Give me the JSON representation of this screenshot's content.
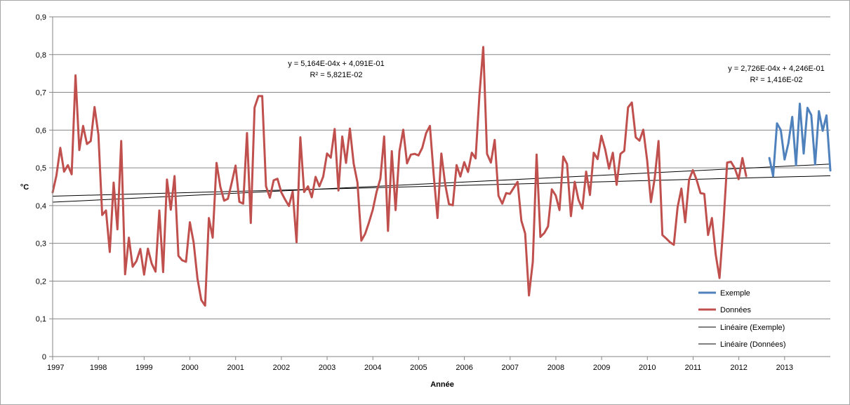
{
  "chart_data": {
    "type": "line",
    "xlabel": "Année",
    "ylabel": "°C",
    "ylim": [
      0,
      0.9
    ],
    "yticks": [
      "0",
      "0,1",
      "0,2",
      "0,3",
      "0,4",
      "0,5",
      "0,6",
      "0,7",
      "0,8",
      "0,9"
    ],
    "xlim": [
      1997,
      2014
    ],
    "xticks": [
      "1997",
      "1998",
      "1999",
      "2000",
      "2001",
      "2002",
      "2003",
      "2004",
      "2005",
      "2006",
      "2007",
      "2008",
      "2009",
      "2010",
      "2011",
      "2012",
      "2013"
    ],
    "grid": "horizontal",
    "legend_position": "bottom-right",
    "series": [
      {
        "name": "Données",
        "color": "#c0504d",
        "start_year": 1997.0,
        "step_years": 0.0833,
        "values": [
          0.435,
          0.48,
          0.553,
          0.49,
          0.507,
          0.483,
          0.745,
          0.547,
          0.611,
          0.563,
          0.571,
          0.661,
          0.588,
          0.375,
          0.387,
          0.277,
          0.461,
          0.337,
          0.571,
          0.218,
          0.315,
          0.238,
          0.253,
          0.285,
          0.217,
          0.286,
          0.246,
          0.225,
          0.387,
          0.224,
          0.469,
          0.389,
          0.478,
          0.267,
          0.255,
          0.251,
          0.356,
          0.302,
          0.207,
          0.15,
          0.135,
          0.367,
          0.315,
          0.513,
          0.45,
          0.413,
          0.418,
          0.461,
          0.506,
          0.41,
          0.405,
          0.592,
          0.354,
          0.66,
          0.69,
          0.69,
          0.451,
          0.421,
          0.467,
          0.471,
          0.435,
          0.416,
          0.399,
          0.437,
          0.303,
          0.581,
          0.436,
          0.451,
          0.422,
          0.476,
          0.451,
          0.477,
          0.538,
          0.527,
          0.603,
          0.44,
          0.583,
          0.513,
          0.604,
          0.511,
          0.461,
          0.307,
          0.325,
          0.355,
          0.389,
          0.436,
          0.471,
          0.583,
          0.333,
          0.544,
          0.388,
          0.544,
          0.601,
          0.512,
          0.535,
          0.537,
          0.533,
          0.553,
          0.592,
          0.611,
          0.481,
          0.367,
          0.538,
          0.457,
          0.404,
          0.401,
          0.507,
          0.477,
          0.515,
          0.489,
          0.54,
          0.525,
          0.694,
          0.82,
          0.537,
          0.514,
          0.574,
          0.426,
          0.405,
          0.433,
          0.431,
          0.447,
          0.463,
          0.36,
          0.326,
          0.162,
          0.251,
          0.535,
          0.317,
          0.327,
          0.345,
          0.443,
          0.427,
          0.388,
          0.53,
          0.51,
          0.372,
          0.463,
          0.415,
          0.392,
          0.49,
          0.428,
          0.54,
          0.523,
          0.585,
          0.549,
          0.498,
          0.54,
          0.455,
          0.537,
          0.545,
          0.66,
          0.673,
          0.581,
          0.572,
          0.601,
          0.52,
          0.409,
          0.473,
          0.571,
          0.322,
          0.313,
          0.303,
          0.296,
          0.396,
          0.445,
          0.356,
          0.468,
          0.494,
          0.468,
          0.433,
          0.431,
          0.322,
          0.367,
          0.27,
          0.208,
          0.346,
          0.514,
          0.516,
          0.499,
          0.47,
          0.526,
          0.478
        ]
      },
      {
        "name": "Exemple",
        "color": "#4f81bd",
        "start_year": 2012.6667,
        "step_years": 0.0833,
        "values": [
          0.526,
          0.478,
          0.618,
          0.6,
          0.522,
          0.565,
          0.635,
          0.507,
          0.67,
          0.538,
          0.659,
          0.64,
          0.509,
          0.65,
          0.598,
          0.639,
          0.493
        ]
      }
    ],
    "trendlines": [
      {
        "name": "Linéaire (Exemple)",
        "color": "#000000",
        "y_start": 0.425,
        "y_end": 0.479
      },
      {
        "name": "Linéaire (Données)",
        "color": "#000000",
        "y_start": 0.409,
        "y_end": 0.51
      }
    ],
    "annotations": [
      {
        "equation": "y = 5,164E-04x + 4,091E-01",
        "r2": "R² = 5,821E-02"
      },
      {
        "equation": "y = 2,726E-04x + 4,246E-01",
        "r2": "R² = 1,416E-02"
      }
    ]
  }
}
